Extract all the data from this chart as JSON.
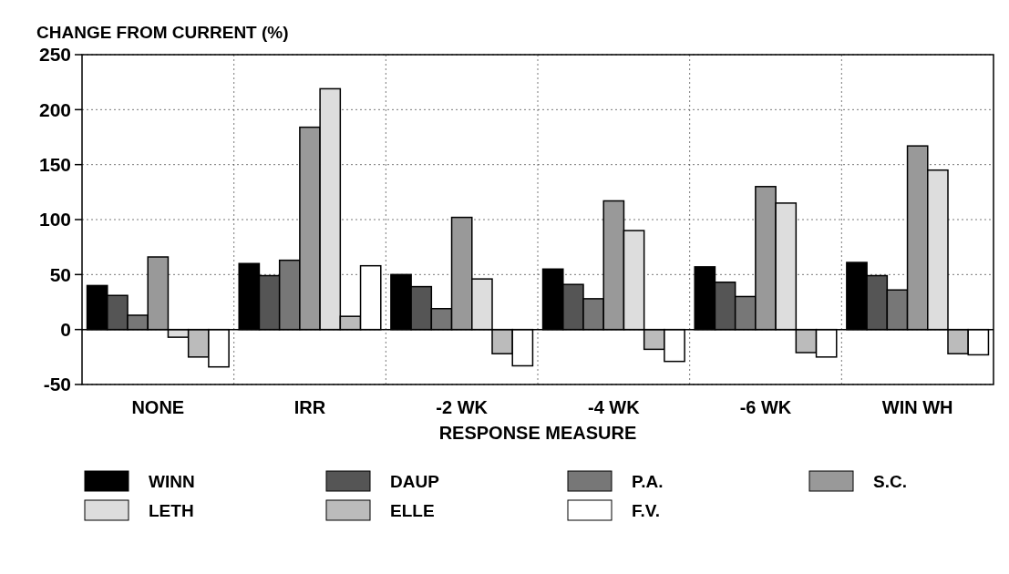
{
  "chart_data": {
    "type": "bar",
    "title": "CHANGE FROM CURRENT (%)",
    "xlabel": "RESPONSE MEASURE",
    "categories": [
      "NONE",
      "IRR",
      "-2 WK",
      "-4 WK",
      "-6 WK",
      "WIN WH"
    ],
    "series": [
      {
        "name": "WINN",
        "color": "#000000",
        "values": [
          40,
          60,
          50,
          55,
          57,
          61
        ]
      },
      {
        "name": "DAUP",
        "color": "#555555",
        "values": [
          31,
          49,
          39,
          41,
          43,
          49
        ]
      },
      {
        "name": "P.A.",
        "color": "#777777",
        "values": [
          13,
          63,
          19,
          28,
          30,
          36
        ]
      },
      {
        "name": "S.C.",
        "color": "#999999",
        "values": [
          66,
          184,
          102,
          117,
          130,
          167
        ]
      },
      {
        "name": "LETH",
        "color": "#dddddd",
        "values": [
          -7,
          219,
          46,
          90,
          115,
          145
        ]
      },
      {
        "name": "ELLE",
        "color": "#bbbbbb",
        "values": [
          -25,
          12,
          -22,
          -18,
          -21,
          -22
        ]
      },
      {
        "name": "F.V.",
        "color": "#ffffff",
        "values": [
          -34,
          58,
          -33,
          -29,
          -25,
          -23
        ]
      }
    ],
    "ylim": [
      -50,
      250
    ],
    "yticks": [
      -50,
      0,
      50,
      100,
      150,
      200,
      250
    ],
    "grid": true,
    "legend": "bottom"
  }
}
